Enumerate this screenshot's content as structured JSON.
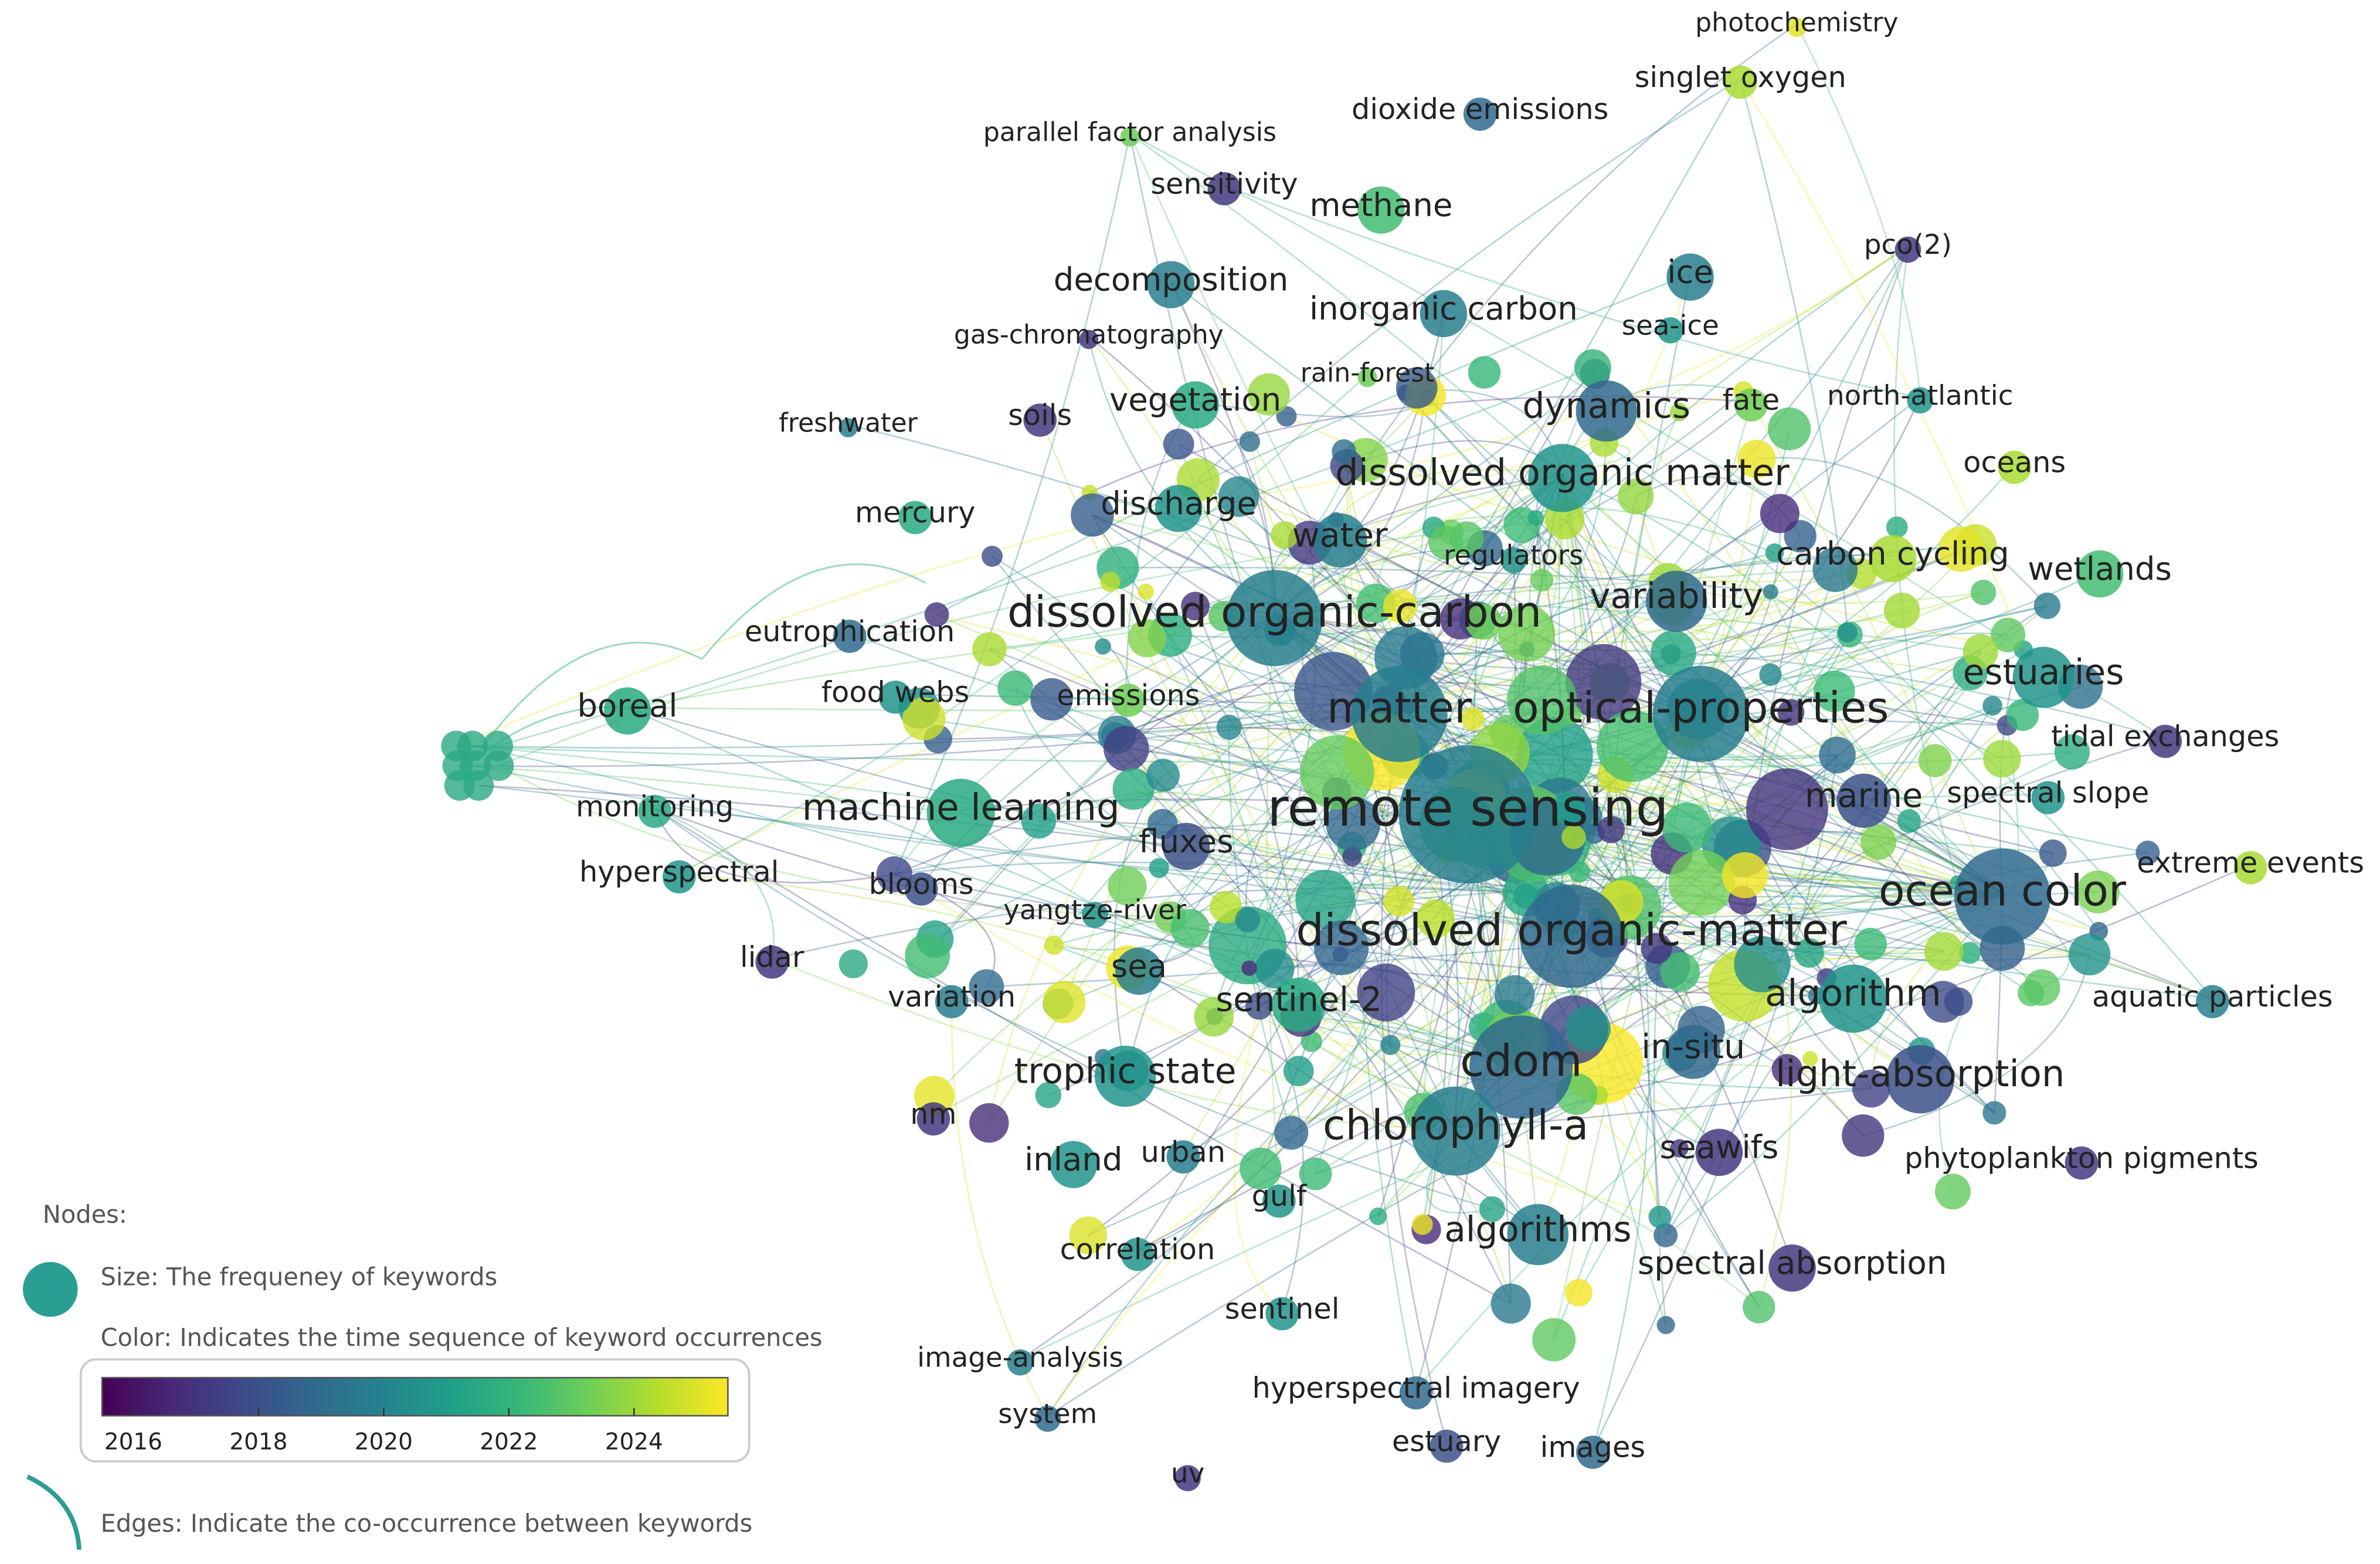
{
  "nodes": [
    {
      "label": "photochemistry",
      "year": 2025
    },
    {
      "label": "singlet oxygen",
      "year": 2024
    },
    {
      "label": "dioxide emissions",
      "year": 2018
    },
    {
      "label": "parallel factor analysis",
      "year": 2023
    },
    {
      "label": "sensitivity",
      "year": 2016
    },
    {
      "label": "methane",
      "year": 2022
    },
    {
      "label": "pco(2)",
      "year": 2016
    },
    {
      "label": "decomposition",
      "year": 2019
    },
    {
      "label": "ice",
      "year": 2019
    },
    {
      "label": "inorganic carbon",
      "year": 2019
    },
    {
      "label": "sea-ice",
      "year": 2020
    },
    {
      "label": "gas-chromatography",
      "year": 2016
    },
    {
      "label": "rain-forest",
      "year": 2023
    },
    {
      "label": "vegetation",
      "year": 2021
    },
    {
      "label": "dynamics",
      "year": 2018
    },
    {
      "label": "fate",
      "year": 2023
    },
    {
      "label": "north-atlantic",
      "year": 2020
    },
    {
      "label": "freshwater",
      "year": 2019
    },
    {
      "label": "soils",
      "year": 2016
    },
    {
      "label": "oceans",
      "year": 2024
    },
    {
      "label": "dissolved organic matter",
      "year": 2020
    },
    {
      "label": "discharge",
      "year": 2020
    },
    {
      "label": "mercury",
      "year": 2021
    },
    {
      "label": "water",
      "year": 2019
    },
    {
      "label": "regulators",
      "year": 2020
    },
    {
      "label": "carbon cycling",
      "year": 2024
    },
    {
      "label": "wetlands",
      "year": 2022
    },
    {
      "label": "variability",
      "year": 2018
    },
    {
      "label": "dissolved organic-carbon",
      "year": 2019
    },
    {
      "label": "eutrophication",
      "year": 2018
    },
    {
      "label": "estuaries",
      "year": 2020
    },
    {
      "label": "boreal",
      "year": 2021
    },
    {
      "label": "food webs",
      "year": 2020
    },
    {
      "label": "emissions",
      "year": 2023
    },
    {
      "label": "matter",
      "year": 2019
    },
    {
      "label": "optical-properties",
      "year": 2019
    },
    {
      "label": "tidal exchanges",
      "year": 2016
    },
    {
      "label": "monitoring",
      "year": 2021
    },
    {
      "label": "machine learning",
      "year": 2021
    },
    {
      "label": "remote sensing",
      "year": 2019
    },
    {
      "label": "marine",
      "year": 2017
    },
    {
      "label": "spectral slope",
      "year": 2020
    },
    {
      "label": "fluxes",
      "year": 2017
    },
    {
      "label": "hyperspectral",
      "year": 2020
    },
    {
      "label": "blooms",
      "year": 2017
    },
    {
      "label": "extreme events",
      "year": 2024
    },
    {
      "label": "ocean color",
      "year": 2018
    },
    {
      "label": "yangtze-river",
      "year": 2020
    },
    {
      "label": "dissolved organic-matter",
      "year": 2018
    },
    {
      "label": "lidar",
      "year": 2016
    },
    {
      "label": "sea",
      "year": 2019
    },
    {
      "label": "variation",
      "year": 2019
    },
    {
      "label": "sentinel-2",
      "year": 2021
    },
    {
      "label": "algorithm",
      "year": 2020
    },
    {
      "label": "aquatic particles",
      "year": 2019
    },
    {
      "label": "in-situ",
      "year": 2018
    },
    {
      "label": "cdom",
      "year": 2018
    },
    {
      "label": "trophic state",
      "year": 2020
    },
    {
      "label": "light-absorption",
      "year": 2017
    },
    {
      "label": "nm",
      "year": 2016
    },
    {
      "label": "chlorophyll-a",
      "year": 2019
    },
    {
      "label": "inland",
      "year": 2020
    },
    {
      "label": "urban",
      "year": 2019
    },
    {
      "label": "seawifs",
      "year": 2016
    },
    {
      "label": "phytoplankton pigments",
      "year": 2016
    },
    {
      "label": "gulf",
      "year": 2020
    },
    {
      "label": "algorithms",
      "year": 2019
    },
    {
      "label": "spectral absorption",
      "year": 2016
    },
    {
      "label": "correlation",
      "year": 2020
    },
    {
      "label": "sentinel",
      "year": 2020
    },
    {
      "label": "image-analysis",
      "year": 2019
    },
    {
      "label": "hyperspectral imagery",
      "year": 2018
    },
    {
      "label": "system",
      "year": 2018
    },
    {
      "label": "estuary",
      "year": 2017
    },
    {
      "label": "images",
      "year": 2018
    },
    {
      "label": "uv",
      "year": 2016
    }
  ],
  "legend": {
    "nodes_title": "Nodes:",
    "size_text": "Size: The frequeney of keywords",
    "color_text": "Color: Indicates the time sequence of keyword occurrences",
    "edges_text": "Edges: Indicate the co-occurrence between keywords",
    "colorbar": {
      "range": [
        2015.5,
        2025.5
      ],
      "ticks": [
        2016,
        2018,
        2020,
        2022,
        2024
      ]
    }
  }
}
